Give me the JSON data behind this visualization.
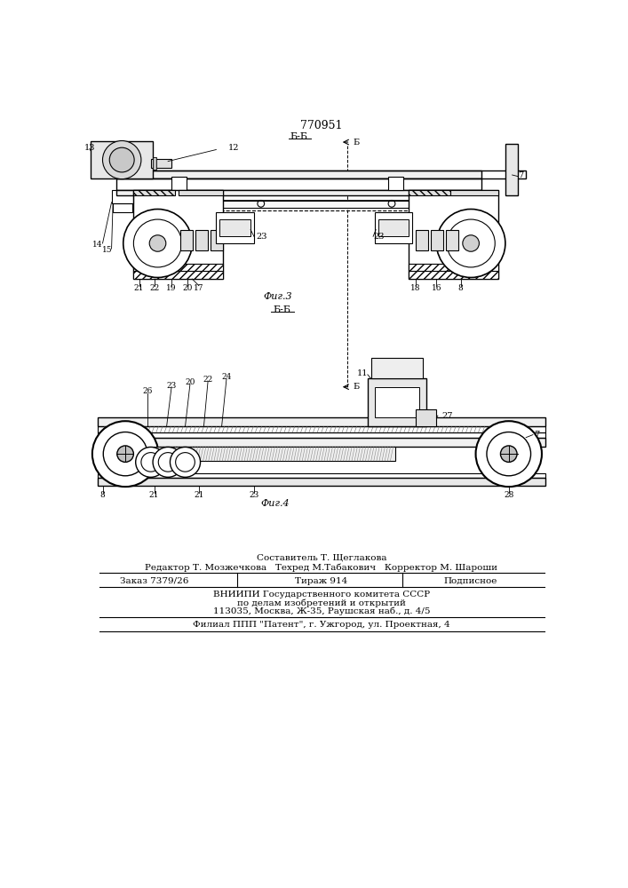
{
  "patent_number": "770951",
  "fig3_label": "Фиг.3",
  "fig4_label": "Фиг.4",
  "section_bb": "Б-Б",
  "section_b": "Б",
  "footer_sestavitel": "Составитель Т. Щеглакова",
  "footer_redaktor": "Редактор Т. Мозжечкова   Техред М.Табакович   Корректор М. Шароши",
  "footer_zakaz": "Заказ 7379/26",
  "footer_tirazh": "Тираж 914",
  "footer_podpisnoe": "Подписное",
  "footer_vniiipi": "ВНИИПИ Государственного комитета СССР",
  "footer_po_delam": "по делам изобретений и открытий",
  "footer_address": "113035, Москва, Ж-35, Раушская наб., д. 4/5",
  "footer_filial": "Филиал ППП \"Патент\", г. Ужгород, ул. Проектная, 4",
  "bg_color": "#ffffff"
}
